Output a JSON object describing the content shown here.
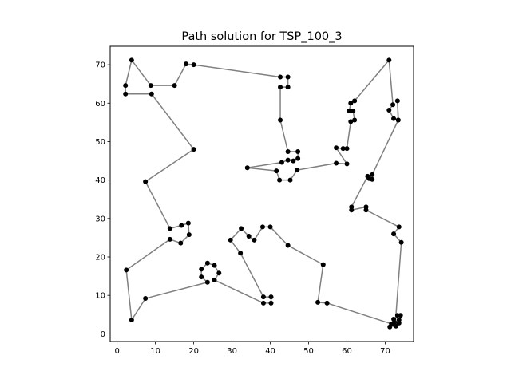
{
  "chart_data": {
    "type": "scatter",
    "title": "Path solution for TSP_100_3",
    "xlabel": "",
    "ylabel": "",
    "xlim": [
      -1.8,
      77.4
    ],
    "ylim": [
      -2.0,
      74.8
    ],
    "xticks": [
      0,
      10,
      20,
      30,
      40,
      50,
      60,
      70
    ],
    "yticks": [
      0,
      10,
      20,
      30,
      40,
      50,
      60,
      70
    ],
    "xtick_labels": [
      "0",
      "10",
      "20",
      "30",
      "40",
      "50",
      "60",
      "70"
    ],
    "ytick_labels": [
      "0",
      "10",
      "20",
      "30",
      "40",
      "50",
      "60",
      "70"
    ],
    "grid": false,
    "legend": "none",
    "path_color": "#808080",
    "point_color": "#000000",
    "path": [
      [
        3.8,
        71.2
      ],
      [
        8.8,
        64.6
      ],
      [
        15.0,
        64.6
      ],
      [
        18.0,
        70.2
      ],
      [
        20.0,
        70.0
      ],
      [
        42.6,
        66.8
      ],
      [
        44.6,
        66.8
      ],
      [
        44.6,
        64.2
      ],
      [
        42.6,
        64.2
      ],
      [
        42.6,
        55.6
      ],
      [
        44.6,
        47.4
      ],
      [
        47.2,
        47.4
      ],
      [
        47.2,
        45.6
      ],
      [
        46.0,
        45.0
      ],
      [
        44.6,
        45.2
      ],
      [
        43.0,
        44.6
      ],
      [
        34.0,
        43.2
      ],
      [
        41.6,
        42.4
      ],
      [
        42.4,
        40.0
      ],
      [
        45.2,
        40.0
      ],
      [
        47.0,
        42.6
      ],
      [
        57.2,
        44.4
      ],
      [
        60.0,
        44.2
      ],
      [
        57.2,
        48.4
      ],
      [
        59.0,
        48.2
      ],
      [
        60.0,
        48.2
      ],
      [
        61.0,
        55.2
      ],
      [
        62.0,
        55.6
      ],
      [
        61.6,
        58.0
      ],
      [
        60.6,
        58.0
      ],
      [
        61.0,
        60.0
      ],
      [
        62.0,
        60.6
      ],
      [
        71.0,
        71.2
      ],
      [
        72.0,
        59.6
      ],
      [
        71.0,
        58.2
      ],
      [
        72.2,
        56.0
      ],
      [
        73.4,
        55.6
      ],
      [
        73.2,
        60.6
      ],
      [
        73.4,
        55.6
      ],
      [
        66.6,
        41.4
      ],
      [
        65.8,
        40.4
      ],
      [
        66.6,
        40.2
      ],
      [
        65.4,
        41.0
      ],
      [
        61.2,
        33.0
      ],
      [
        61.2,
        32.2
      ],
      [
        65.0,
        33.0
      ],
      [
        65.0,
        32.2
      ],
      [
        73.6,
        27.8
      ],
      [
        72.2,
        26.0
      ],
      [
        74.2,
        23.8
      ],
      [
        72.6,
        2.2
      ],
      [
        71.2,
        1.8
      ],
      [
        72.4,
        3.0
      ],
      [
        73.6,
        2.8
      ],
      [
        72.2,
        3.8
      ],
      [
        73.2,
        4.8
      ],
      [
        74.0,
        4.8
      ],
      [
        73.6,
        3.6
      ],
      [
        72.8,
        2.0
      ],
      [
        71.6,
        2.6
      ],
      [
        54.8,
        8.0
      ],
      [
        52.4,
        8.2
      ],
      [
        53.8,
        18.0
      ],
      [
        44.6,
        23.0
      ],
      [
        40.0,
        27.8
      ],
      [
        38.0,
        27.8
      ],
      [
        35.8,
        24.4
      ],
      [
        34.4,
        25.4
      ],
      [
        32.4,
        27.4
      ],
      [
        29.6,
        24.4
      ],
      [
        32.2,
        21.0
      ],
      [
        38.2,
        9.6
      ],
      [
        40.2,
        9.6
      ],
      [
        40.2,
        8.0
      ],
      [
        38.2,
        8.0
      ],
      [
        25.4,
        14.0
      ],
      [
        26.6,
        15.8
      ],
      [
        25.4,
        17.8
      ],
      [
        23.6,
        18.4
      ],
      [
        22.0,
        16.8
      ],
      [
        22.0,
        14.8
      ],
      [
        23.6,
        13.4
      ],
      [
        7.4,
        9.2
      ],
      [
        3.8,
        3.6
      ],
      [
        2.4,
        16.6
      ],
      [
        13.8,
        24.6
      ],
      [
        16.6,
        23.6
      ],
      [
        18.8,
        25.8
      ],
      [
        18.6,
        28.8
      ],
      [
        16.8,
        28.2
      ],
      [
        13.8,
        27.4
      ],
      [
        7.4,
        39.6
      ],
      [
        20.0,
        48.0
      ],
      [
        9.0,
        62.4
      ],
      [
        2.2,
        62.4
      ],
      [
        2.2,
        64.6
      ],
      [
        3.8,
        71.2
      ]
    ]
  }
}
